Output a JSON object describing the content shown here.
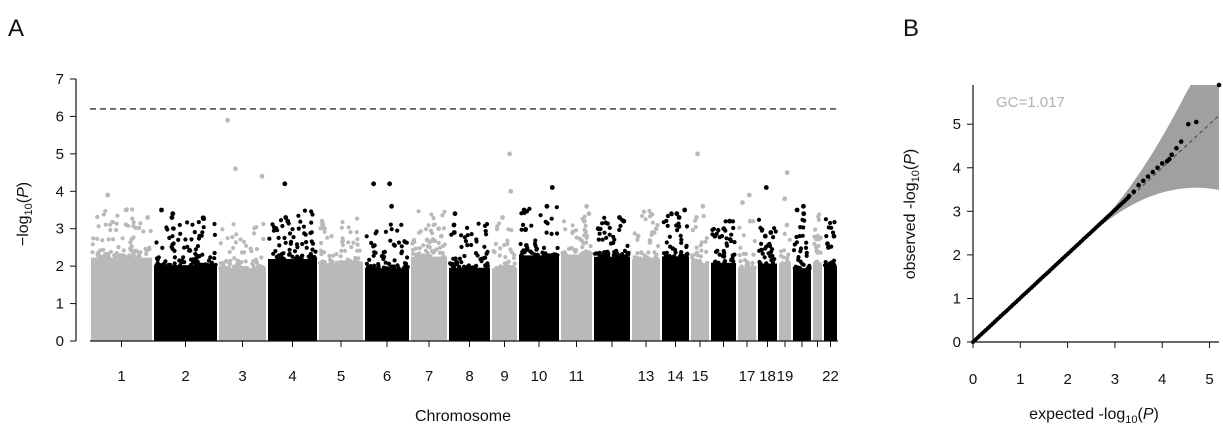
{
  "panels": {
    "a_label": "A",
    "b_label": "B"
  },
  "chart_data": [
    {
      "type": "scatter",
      "title": "",
      "xlabel": "Chromosome",
      "ylabel": "-log10(P)",
      "ylim": [
        0,
        7
      ],
      "yticks": [
        "0",
        "1",
        "2",
        "3",
        "4",
        "5",
        "6",
        "7"
      ],
      "threshold": 6.2,
      "colors": {
        "odd": "#b9b9b9",
        "even": "#000000",
        "threshold": "#333333"
      },
      "chromosomes": [
        {
          "chr": 1,
          "label": "1",
          "top": [
            3.9,
            3.5,
            3.3
          ]
        },
        {
          "chr": 2,
          "label": "2",
          "top": [
            3.5,
            3.4,
            3.3
          ]
        },
        {
          "chr": 3,
          "label": "3",
          "top": [
            5.9,
            4.6,
            4.4
          ]
        },
        {
          "chr": 4,
          "label": "4",
          "top": [
            4.2,
            3.3,
            3.2
          ]
        },
        {
          "chr": 5,
          "label": "5",
          "top": [
            3.2,
            3.1,
            3.0
          ]
        },
        {
          "chr": 6,
          "label": "6",
          "top": [
            4.2,
            4.2,
            3.6
          ]
        },
        {
          "chr": 7,
          "label": "7",
          "top": [
            3.0,
            2.8,
            2.7
          ]
        },
        {
          "chr": 8,
          "label": "8",
          "top": [
            3.4,
            3.1,
            2.9
          ]
        },
        {
          "chr": 9,
          "label": "9",
          "top": [
            5.0,
            4.0,
            3.3
          ]
        },
        {
          "chr": 10,
          "label": "10",
          "top": [
            4.1,
            3.6,
            3.5
          ]
        },
        {
          "chr": 11,
          "label": "11",
          "top": [
            3.6,
            3.4,
            3.2
          ]
        },
        {
          "chr": 12,
          "label": "",
          "top": [
            3.3,
            3.2,
            3.0
          ]
        },
        {
          "chr": 13,
          "label": "13",
          "top": [
            3.0,
            2.9,
            2.8
          ]
        },
        {
          "chr": 14,
          "label": "14",
          "top": [
            3.5,
            3.4,
            3.3
          ]
        },
        {
          "chr": 15,
          "label": "15",
          "top": [
            5.0,
            3.6,
            3.3
          ]
        },
        {
          "chr": 16,
          "label": "",
          "top": [
            3.2,
            3.0,
            2.8
          ]
        },
        {
          "chr": 17,
          "label": "17",
          "top": [
            3.9,
            3.7,
            3.2
          ]
        },
        {
          "chr": 18,
          "label": "18",
          "top": [
            4.1,
            2.9,
            2.8
          ]
        },
        {
          "chr": 19,
          "label": "19",
          "top": [
            4.5,
            3.8,
            3.1
          ]
        },
        {
          "chr": 20,
          "label": "",
          "top": [
            3.6,
            3.5,
            3.4
          ]
        },
        {
          "chr": 21,
          "label": "",
          "top": [
            2.8,
            2.5,
            2.4
          ]
        },
        {
          "chr": 22,
          "label": "22",
          "top": [
            2.8,
            2.6,
            2.5
          ]
        }
      ]
    },
    {
      "type": "scatter",
      "title": "",
      "xlabel": "expected -log10(P)",
      "ylabel": "observed -log10(P)",
      "xlim": [
        0,
        5.2
      ],
      "ylim": [
        0,
        5.9
      ],
      "xticks": [
        "0",
        "1",
        "2",
        "3",
        "4",
        "5"
      ],
      "yticks": [
        "0",
        "1",
        "2",
        "3",
        "4",
        "5"
      ],
      "annotation": "GC=1.017",
      "gc": 1.017,
      "colors": {
        "points": "#000000",
        "band": "#a0a0a0",
        "line": "#444444"
      },
      "tail_points": [
        {
          "x": 3.3,
          "y": 3.35
        },
        {
          "x": 3.4,
          "y": 3.45
        },
        {
          "x": 3.5,
          "y": 3.6
        },
        {
          "x": 3.6,
          "y": 3.7
        },
        {
          "x": 3.7,
          "y": 3.8
        },
        {
          "x": 3.8,
          "y": 3.9
        },
        {
          "x": 3.9,
          "y": 4.0
        },
        {
          "x": 4.0,
          "y": 4.1
        },
        {
          "x": 4.1,
          "y": 4.15
        },
        {
          "x": 4.15,
          "y": 4.2
        },
        {
          "x": 4.2,
          "y": 4.3
        },
        {
          "x": 4.3,
          "y": 4.45
        },
        {
          "x": 4.4,
          "y": 4.6
        },
        {
          "x": 4.55,
          "y": 5.0
        },
        {
          "x": 4.72,
          "y": 5.05
        },
        {
          "x": 5.2,
          "y": 5.9
        }
      ]
    }
  ]
}
